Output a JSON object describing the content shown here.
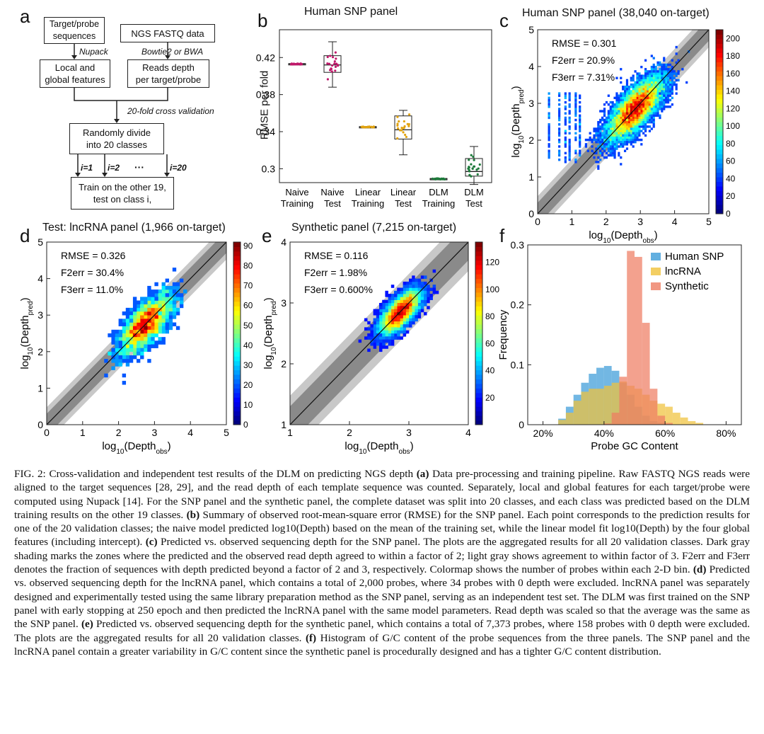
{
  "panel_labels": {
    "a": "a",
    "b": "b",
    "c": "c",
    "d": "d",
    "e": "e",
    "f": "f"
  },
  "flowchart": {
    "box_target": "Target/probe sequences",
    "box_ngs": "NGS FASTQ data",
    "note_nupack": "Nupack",
    "note_bowtie": "Bowtie2 or BWA",
    "box_local": "Local and global features",
    "box_reads": "Reads depth per target/probe",
    "note_cv": "20-fold cross validation",
    "box_divide": "Randomly divide into 20 classes",
    "i1": "i=1",
    "i2": "i=2",
    "dots": "···",
    "i20": "i=20",
    "box_train_line1": "Train on the other 19,",
    "box_train_line2": "test on class i,"
  },
  "panel_b": {
    "title": "Human SNP panel",
    "ylabel": "RMSE per fold",
    "yticks": [
      "0.3",
      "0.34",
      "0.38",
      "0.42"
    ],
    "categories": [
      {
        "line1": "Naive",
        "line2": "Training"
      },
      {
        "line1": "Naive",
        "line2": "Test"
      },
      {
        "line1": "Linear",
        "line2": "Training"
      },
      {
        "line1": "Linear",
        "line2": "Test"
      },
      {
        "line1": "DLM",
        "line2": "Training"
      },
      {
        "line1": "DLM",
        "line2": "Test"
      }
    ]
  },
  "panel_c": {
    "title": "Human SNP panel (38,040 on-target)",
    "stats": [
      "RMSE = 0.301",
      "F2err = 20.9%",
      "F3err = 7.31%"
    ],
    "xlabel": "log10(Depthobs)",
    "ylabel": "log10(Depthpred)",
    "ticks": [
      "0",
      "1",
      "2",
      "3",
      "4",
      "5"
    ],
    "colorbar_ticks": [
      "0",
      "20",
      "40",
      "60",
      "80",
      "100",
      "120",
      "140",
      "160",
      "180",
      "200"
    ]
  },
  "panel_d": {
    "title": "Test: lncRNA panel (1,966 on-target)",
    "stats": [
      "RMSE = 0.326",
      "F2err = 30.4%",
      "F3err = 11.0%"
    ],
    "xlabel": "log10(Depthobs)",
    "ylabel": "log10(Depthpred)",
    "ticks": [
      "0",
      "1",
      "2",
      "3",
      "4",
      "5"
    ],
    "colorbar_ticks": [
      "0",
      "10",
      "20",
      "30",
      "40",
      "50",
      "60",
      "70",
      "80",
      "90"
    ]
  },
  "panel_e": {
    "title": "Synthetic panel (7,215 on-target)",
    "stats": [
      "RMSE = 0.116",
      "F2err = 1.98%",
      "F3err = 0.600%"
    ],
    "xlabel": "log10(Depthobs)",
    "ylabel": "log10(Depthpred)",
    "ticks": [
      "1",
      "2",
      "3",
      "4"
    ],
    "colorbar_ticks": [
      "20",
      "40",
      "60",
      "80",
      "100",
      "120"
    ]
  },
  "chart_data": [
    {
      "type": "box",
      "panel": "b",
      "title": "Human SNP panel",
      "ylabel": "RMSE per fold",
      "ylim": [
        0.285,
        0.45
      ],
      "categories": [
        "Naive Training",
        "Naive Test",
        "Linear Training",
        "Linear Test",
        "DLM Training",
        "DLM Test"
      ],
      "boxes": [
        {
          "min": 0.4125,
          "q1": 0.4125,
          "median": 0.413,
          "q3": 0.4135,
          "max": 0.4135,
          "color": "#c0186a"
        },
        {
          "min": 0.388,
          "q1": 0.404,
          "median": 0.412,
          "q3": 0.422,
          "max": 0.437,
          "color": "#c0186a"
        },
        {
          "min": 0.3445,
          "q1": 0.3445,
          "median": 0.345,
          "q3": 0.3455,
          "max": 0.3455,
          "color": "#e1a310"
        },
        {
          "min": 0.315,
          "q1": 0.332,
          "median": 0.342,
          "q3": 0.357,
          "max": 0.363,
          "color": "#e1a310"
        },
        {
          "min": 0.2885,
          "q1": 0.2885,
          "median": 0.289,
          "q3": 0.2895,
          "max": 0.2895,
          "color": "#1d7a3a"
        },
        {
          "min": 0.283,
          "q1": 0.292,
          "median": 0.297,
          "q3": 0.311,
          "max": 0.324,
          "color": "#1d7a3a"
        }
      ]
    },
    {
      "type": "heatmap",
      "panel": "c",
      "title": "Human SNP panel (38,040 on-target)",
      "xlabel": "log10(Depth_obs)",
      "ylabel": "log10(Depth_pred)",
      "xlim": [
        0,
        5
      ],
      "ylim": [
        0,
        5
      ],
      "colorbar_range": [
        0,
        210
      ],
      "peak": [
        2.9,
        2.85
      ]
    },
    {
      "type": "heatmap",
      "panel": "d",
      "title": "Test: lncRNA panel (1,966 on-target)",
      "xlabel": "log10(Depth_obs)",
      "ylabel": "log10(Depth_pred)",
      "xlim": [
        0,
        5
      ],
      "ylim": [
        0,
        5
      ],
      "colorbar_range": [
        0,
        92
      ],
      "peak": [
        2.9,
        2.85
      ]
    },
    {
      "type": "heatmap",
      "panel": "e",
      "title": "Synthetic panel (7,215 on-target)",
      "xlabel": "log10(Depth_obs)",
      "ylabel": "log10(Depth_pred)",
      "xlim": [
        1,
        4
      ],
      "ylim": [
        1,
        4
      ],
      "colorbar_range": [
        0,
        135
      ],
      "peak": [
        2.9,
        2.85
      ]
    },
    {
      "type": "bar",
      "panel": "f",
      "xlabel": "Probe GC Content",
      "ylabel": "Frequency",
      "xticks": [
        "20%",
        "40%",
        "60%",
        "80%"
      ],
      "yticks": [
        "0",
        "0.1",
        "0.2",
        "0.3"
      ],
      "xlim": [
        0.15,
        0.85
      ],
      "ylim": [
        0,
        0.3
      ],
      "bin_width": 0.025,
      "series": [
        {
          "name": "Human SNP",
          "color": "#3b9bd8",
          "start": 0.25,
          "values": [
            0.01,
            0.03,
            0.05,
            0.07,
            0.085,
            0.095,
            0.098,
            0.09,
            0.07,
            0.05,
            0.03,
            0.015,
            0.006,
            0.003
          ]
        },
        {
          "name": "lncRNA",
          "color": "#f0c23b",
          "start": 0.25,
          "values": [
            0.008,
            0.02,
            0.04,
            0.055,
            0.06,
            0.06,
            0.065,
            0.07,
            0.072,
            0.065,
            0.06,
            0.05,
            0.04,
            0.035,
            0.03,
            0.02,
            0.012,
            0.006,
            0.003
          ]
        },
        {
          "name": "Synthetic",
          "color": "#ee7d63",
          "start": 0.4,
          "values": [
            0.002,
            0.02,
            0.08,
            0.29,
            0.28,
            0.17,
            0.06,
            0.015,
            0.003
          ]
        }
      ]
    }
  ],
  "caption": {
    "fig": "FIG. 2:",
    "intro": " Cross-validation and independent test results of the DLM on predicting NGS depth ",
    "a_label": "(a)",
    "a_text": " Data pre-processing and training pipeline. Raw FASTQ NGS reads were aligned to the target sequences [28, 29], and the read depth of each template sequence was counted. Separately, local and global features for each target/probe were computed using Nupack [14]. For the SNP panel and the synthetic panel, the complete dataset was split into 20 classes, and each class was predicted based on the DLM training results on the other 19 classes. ",
    "b_label": "(b)",
    "b_text": " Summary of observed root-mean-square error (RMSE) for the SNP panel. Each point corresponds to the prediction results for one of the 20 validation classes; the naive model predicted log10(Depth) based on the mean of the training set, while the linear model fit log10(Depth) by the four global features (including intercept). ",
    "c_label": "(c)",
    "c_text": " Predicted vs. observed sequencing depth for the SNP panel. The plots are the aggregated results for all 20 validation classes. Dark gray shading marks the zones where the predicted and the observed read depth agreed to within a factor of 2; light gray shows agreement to within factor of 3. F2err and F3err denotes the fraction of sequences with depth predicted beyond a factor of 2 and 3, respectively. Colormap shows the number of probes within each 2-D bin. ",
    "d_label": "(d)",
    "d_text": " Predicted vs. observed sequencing depth for the lncRNA panel, which contains a total of 2,000 probes, where 34 probes with 0 depth were excluded. lncRNA panel was separately designed and experimentally tested using the same library preparation method as the SNP panel, serving as an independent test set. The DLM was first trained on the SNP panel with early stopping at 250 epoch and then predicted the lncRNA panel with the same model parameters. Read depth was scaled so that the average was the same as the SNP panel. ",
    "e_label": "(e)",
    "e_text": " Predicted vs. observed sequencing depth for the synthetic panel, which contains a total of 7,373 probes, where 158 probes with 0 depth were excluded. The plots are the aggregated results for all 20 validation classes. ",
    "f_label": "(f)",
    "f_text": " Histogram of G/C content of the probe sequences from the three panels. The SNP panel and the lncRNA panel contain a greater variability in G/C content since the synthetic panel is procedurally designed and has a tighter G/C content distribution."
  }
}
